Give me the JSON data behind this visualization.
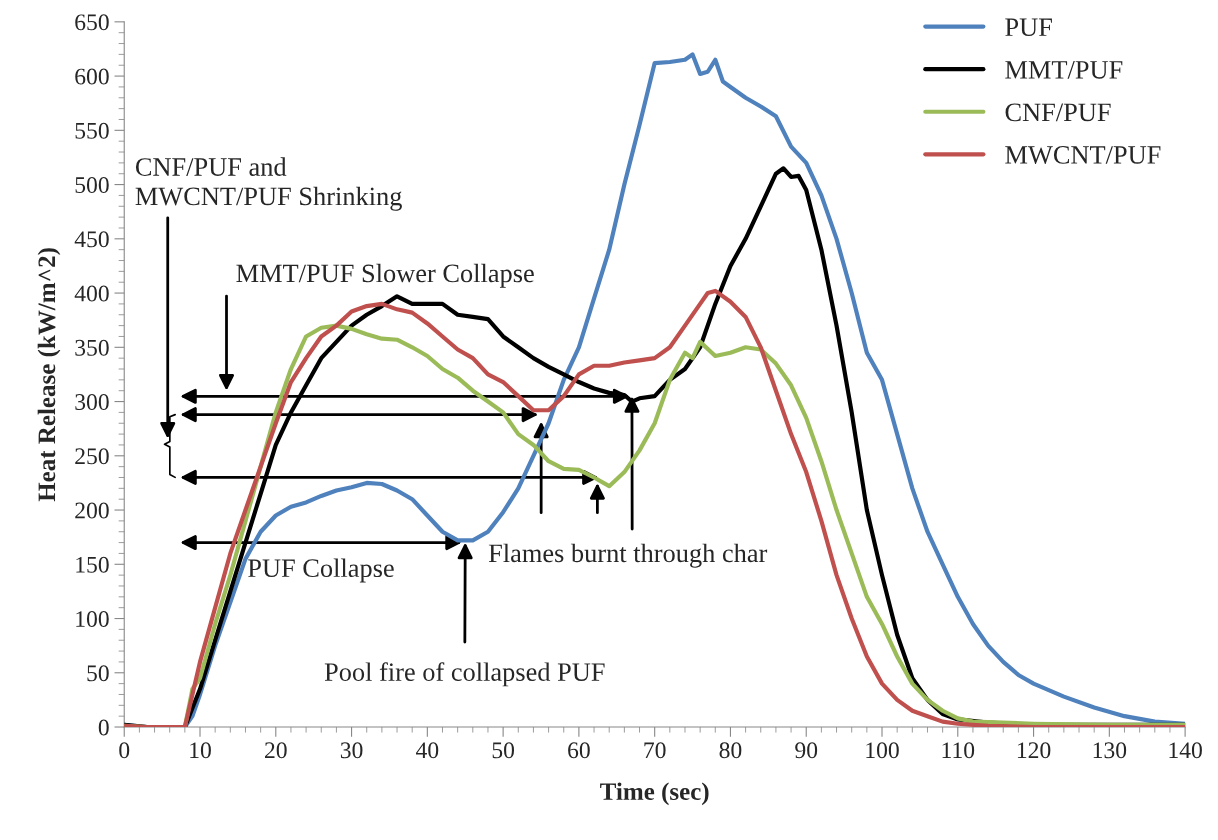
{
  "chart_data": {
    "type": "line",
    "xlabel": "Time (sec)",
    "ylabel": "Heat Release (kW/m^2)",
    "xlim": [
      0,
      140
    ],
    "xticks": [
      0,
      10,
      20,
      30,
      40,
      50,
      60,
      70,
      80,
      90,
      100,
      110,
      120,
      130,
      140
    ],
    "ylim": [
      0,
      650
    ],
    "yticks": [
      0,
      50,
      100,
      150,
      200,
      250,
      300,
      350,
      400,
      450,
      500,
      550,
      600,
      650
    ],
    "grid": false,
    "legend": "top right",
    "marker": "none",
    "line_style": "solid",
    "series": [
      {
        "name": "PUF",
        "color": "#4f81bd",
        "x": [
          0,
          3,
          8,
          9,
          10,
          12,
          14,
          16,
          18,
          20,
          22,
          24,
          26,
          28,
          30,
          32,
          34,
          36,
          38,
          40,
          42,
          44,
          46,
          48,
          50,
          52,
          54,
          56,
          58,
          60,
          62,
          64,
          66,
          68,
          70,
          72,
          74,
          75,
          76,
          77,
          78,
          79,
          80,
          82,
          84,
          86,
          88,
          90,
          92,
          94,
          96,
          98,
          100,
          102,
          104,
          106,
          108,
          110,
          112,
          114,
          116,
          118,
          120,
          124,
          128,
          132,
          136,
          140
        ],
        "values": [
          2,
          0,
          0,
          10,
          30,
          75,
          115,
          155,
          180,
          195,
          203,
          207,
          213,
          218,
          221,
          225,
          224,
          218,
          210,
          195,
          180,
          172,
          172,
          180,
          198,
          220,
          250,
          280,
          320,
          350,
          395,
          440,
          500,
          555,
          612,
          613,
          615,
          620,
          602,
          604,
          615,
          595,
          590,
          580,
          572,
          563,
          535,
          520,
          490,
          450,
          400,
          345,
          320,
          270,
          220,
          180,
          150,
          120,
          95,
          75,
          60,
          48,
          40,
          28,
          18,
          10,
          5,
          3
        ]
      },
      {
        "name": "MMT/PUF",
        "color": "#000000",
        "x": [
          0,
          3,
          8,
          10,
          12,
          14,
          16,
          18,
          20,
          22,
          24,
          26,
          28,
          30,
          32,
          34,
          36,
          38,
          40,
          42,
          44,
          46,
          48,
          50,
          52,
          54,
          56,
          58,
          60,
          62,
          64,
          66,
          67,
          68,
          70,
          72,
          74,
          76,
          78,
          80,
          82,
          84,
          86,
          87,
          88,
          89,
          90,
          92,
          94,
          96,
          98,
          100,
          102,
          104,
          106,
          108,
          110,
          114,
          120,
          130,
          140
        ],
        "values": [
          2,
          0,
          0,
          35,
          80,
          125,
          170,
          215,
          260,
          290,
          315,
          340,
          355,
          370,
          380,
          388,
          397,
          390,
          390,
          390,
          380,
          378,
          376,
          360,
          350,
          340,
          332,
          325,
          318,
          312,
          308,
          306,
          300,
          303,
          305,
          320,
          330,
          350,
          390,
          425,
          450,
          480,
          510,
          515,
          507,
          508,
          495,
          440,
          370,
          290,
          200,
          140,
          85,
          45,
          25,
          12,
          7,
          4,
          2,
          2,
          2
        ]
      },
      {
        "name": "CNF/PUF",
        "color": "#9bbb59",
        "x": [
          0,
          3,
          8,
          9,
          10,
          12,
          14,
          16,
          18,
          20,
          22,
          24,
          26,
          28,
          30,
          32,
          34,
          36,
          38,
          40,
          42,
          44,
          46,
          48,
          50,
          52,
          54,
          56,
          58,
          60,
          62,
          64,
          66,
          68,
          70,
          72,
          74,
          75,
          76,
          78,
          80,
          82,
          84,
          86,
          88,
          90,
          92,
          94,
          96,
          98,
          100,
          102,
          104,
          106,
          108,
          110,
          112,
          120,
          130,
          140
        ],
        "values": [
          1,
          0,
          0,
          35,
          45,
          95,
          140,
          190,
          240,
          290,
          330,
          360,
          368,
          370,
          367,
          362,
          358,
          357,
          350,
          342,
          330,
          322,
          310,
          300,
          290,
          270,
          260,
          245,
          238,
          237,
          230,
          222,
          235,
          255,
          280,
          320,
          345,
          340,
          355,
          342,
          345,
          350,
          348,
          335,
          315,
          285,
          245,
          200,
          160,
          120,
          95,
          65,
          40,
          25,
          15,
          8,
          5,
          3,
          2,
          2
        ]
      },
      {
        "name": "MWCNT/PUF",
        "color": "#c0504d",
        "x": [
          0,
          3,
          8,
          10,
          12,
          14,
          16,
          18,
          20,
          22,
          24,
          26,
          28,
          30,
          32,
          34,
          36,
          38,
          40,
          42,
          44,
          46,
          48,
          50,
          52,
          54,
          56,
          58,
          60,
          62,
          64,
          66,
          68,
          70,
          72,
          74,
          76,
          77,
          78,
          80,
          82,
          84,
          86,
          88,
          90,
          92,
          94,
          96,
          98,
          100,
          102,
          104,
          106,
          108,
          110,
          114,
          120,
          140
        ],
        "values": [
          1,
          0,
          0,
          60,
          110,
          160,
          200,
          240,
          280,
          318,
          340,
          360,
          370,
          383,
          388,
          390,
          385,
          382,
          372,
          360,
          348,
          340,
          325,
          318,
          305,
          292,
          292,
          305,
          325,
          333,
          333,
          336,
          338,
          340,
          350,
          370,
          390,
          400,
          402,
          392,
          378,
          350,
          310,
          270,
          235,
          190,
          140,
          100,
          65,
          40,
          25,
          15,
          10,
          5,
          3,
          1,
          0,
          0
        ]
      }
    ],
    "annotations": [
      "CNF/PUF and\nMWCNT/PUF Shrinking",
      "MMT/PUF Slower Collapse",
      "PUF Collapse",
      {
        "text": "Flames burnt through char",
        "x": 67,
        "y": 305
      },
      {
        "text": "Pool fire of collapsed PUF",
        "x": 45,
        "y": 170
      }
    ]
  }
}
